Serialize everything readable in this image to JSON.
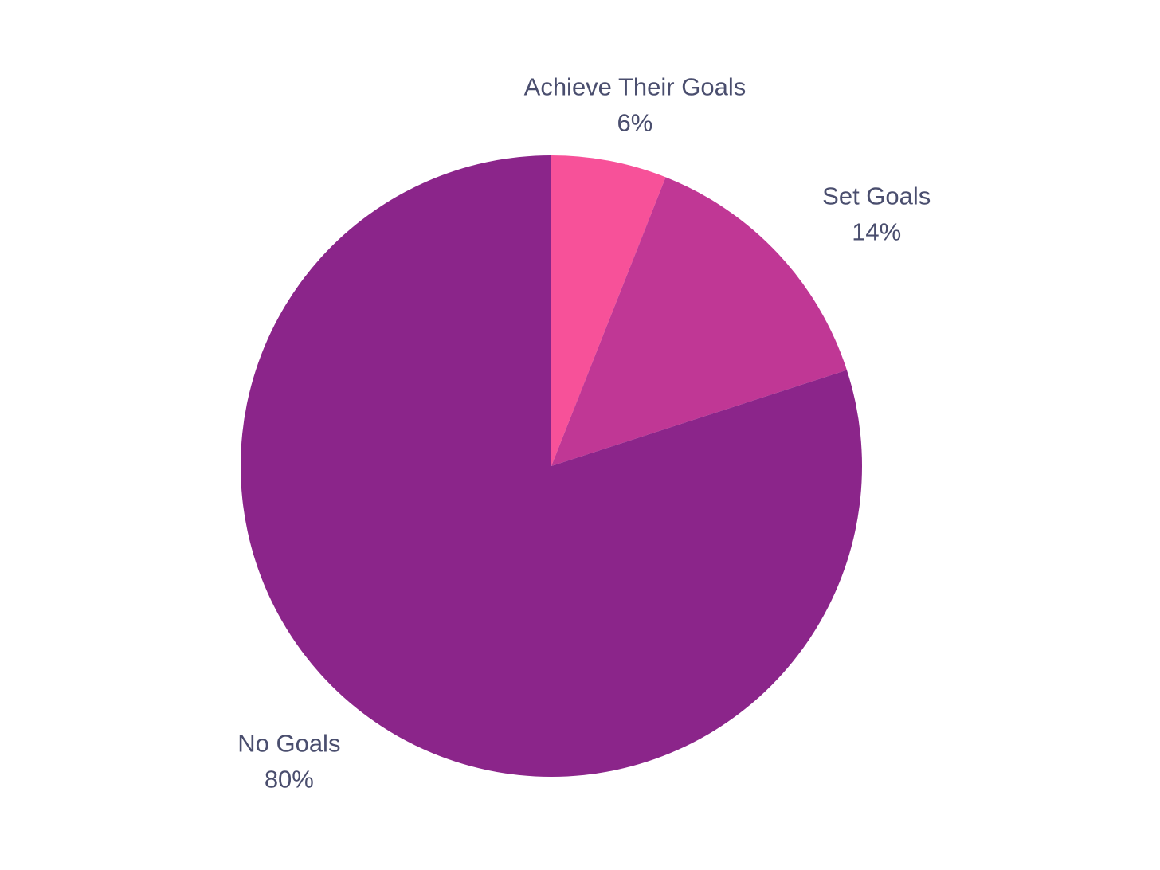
{
  "chart_data": {
    "type": "pie",
    "categories": [
      "Achieve Their Goals",
      "Set Goals",
      "No Goals"
    ],
    "values": [
      6,
      14,
      80
    ],
    "value_labels": [
      "6%",
      "14%",
      "80%"
    ],
    "colors": [
      "#f75199",
      "#c03795",
      "#8b258a"
    ]
  }
}
